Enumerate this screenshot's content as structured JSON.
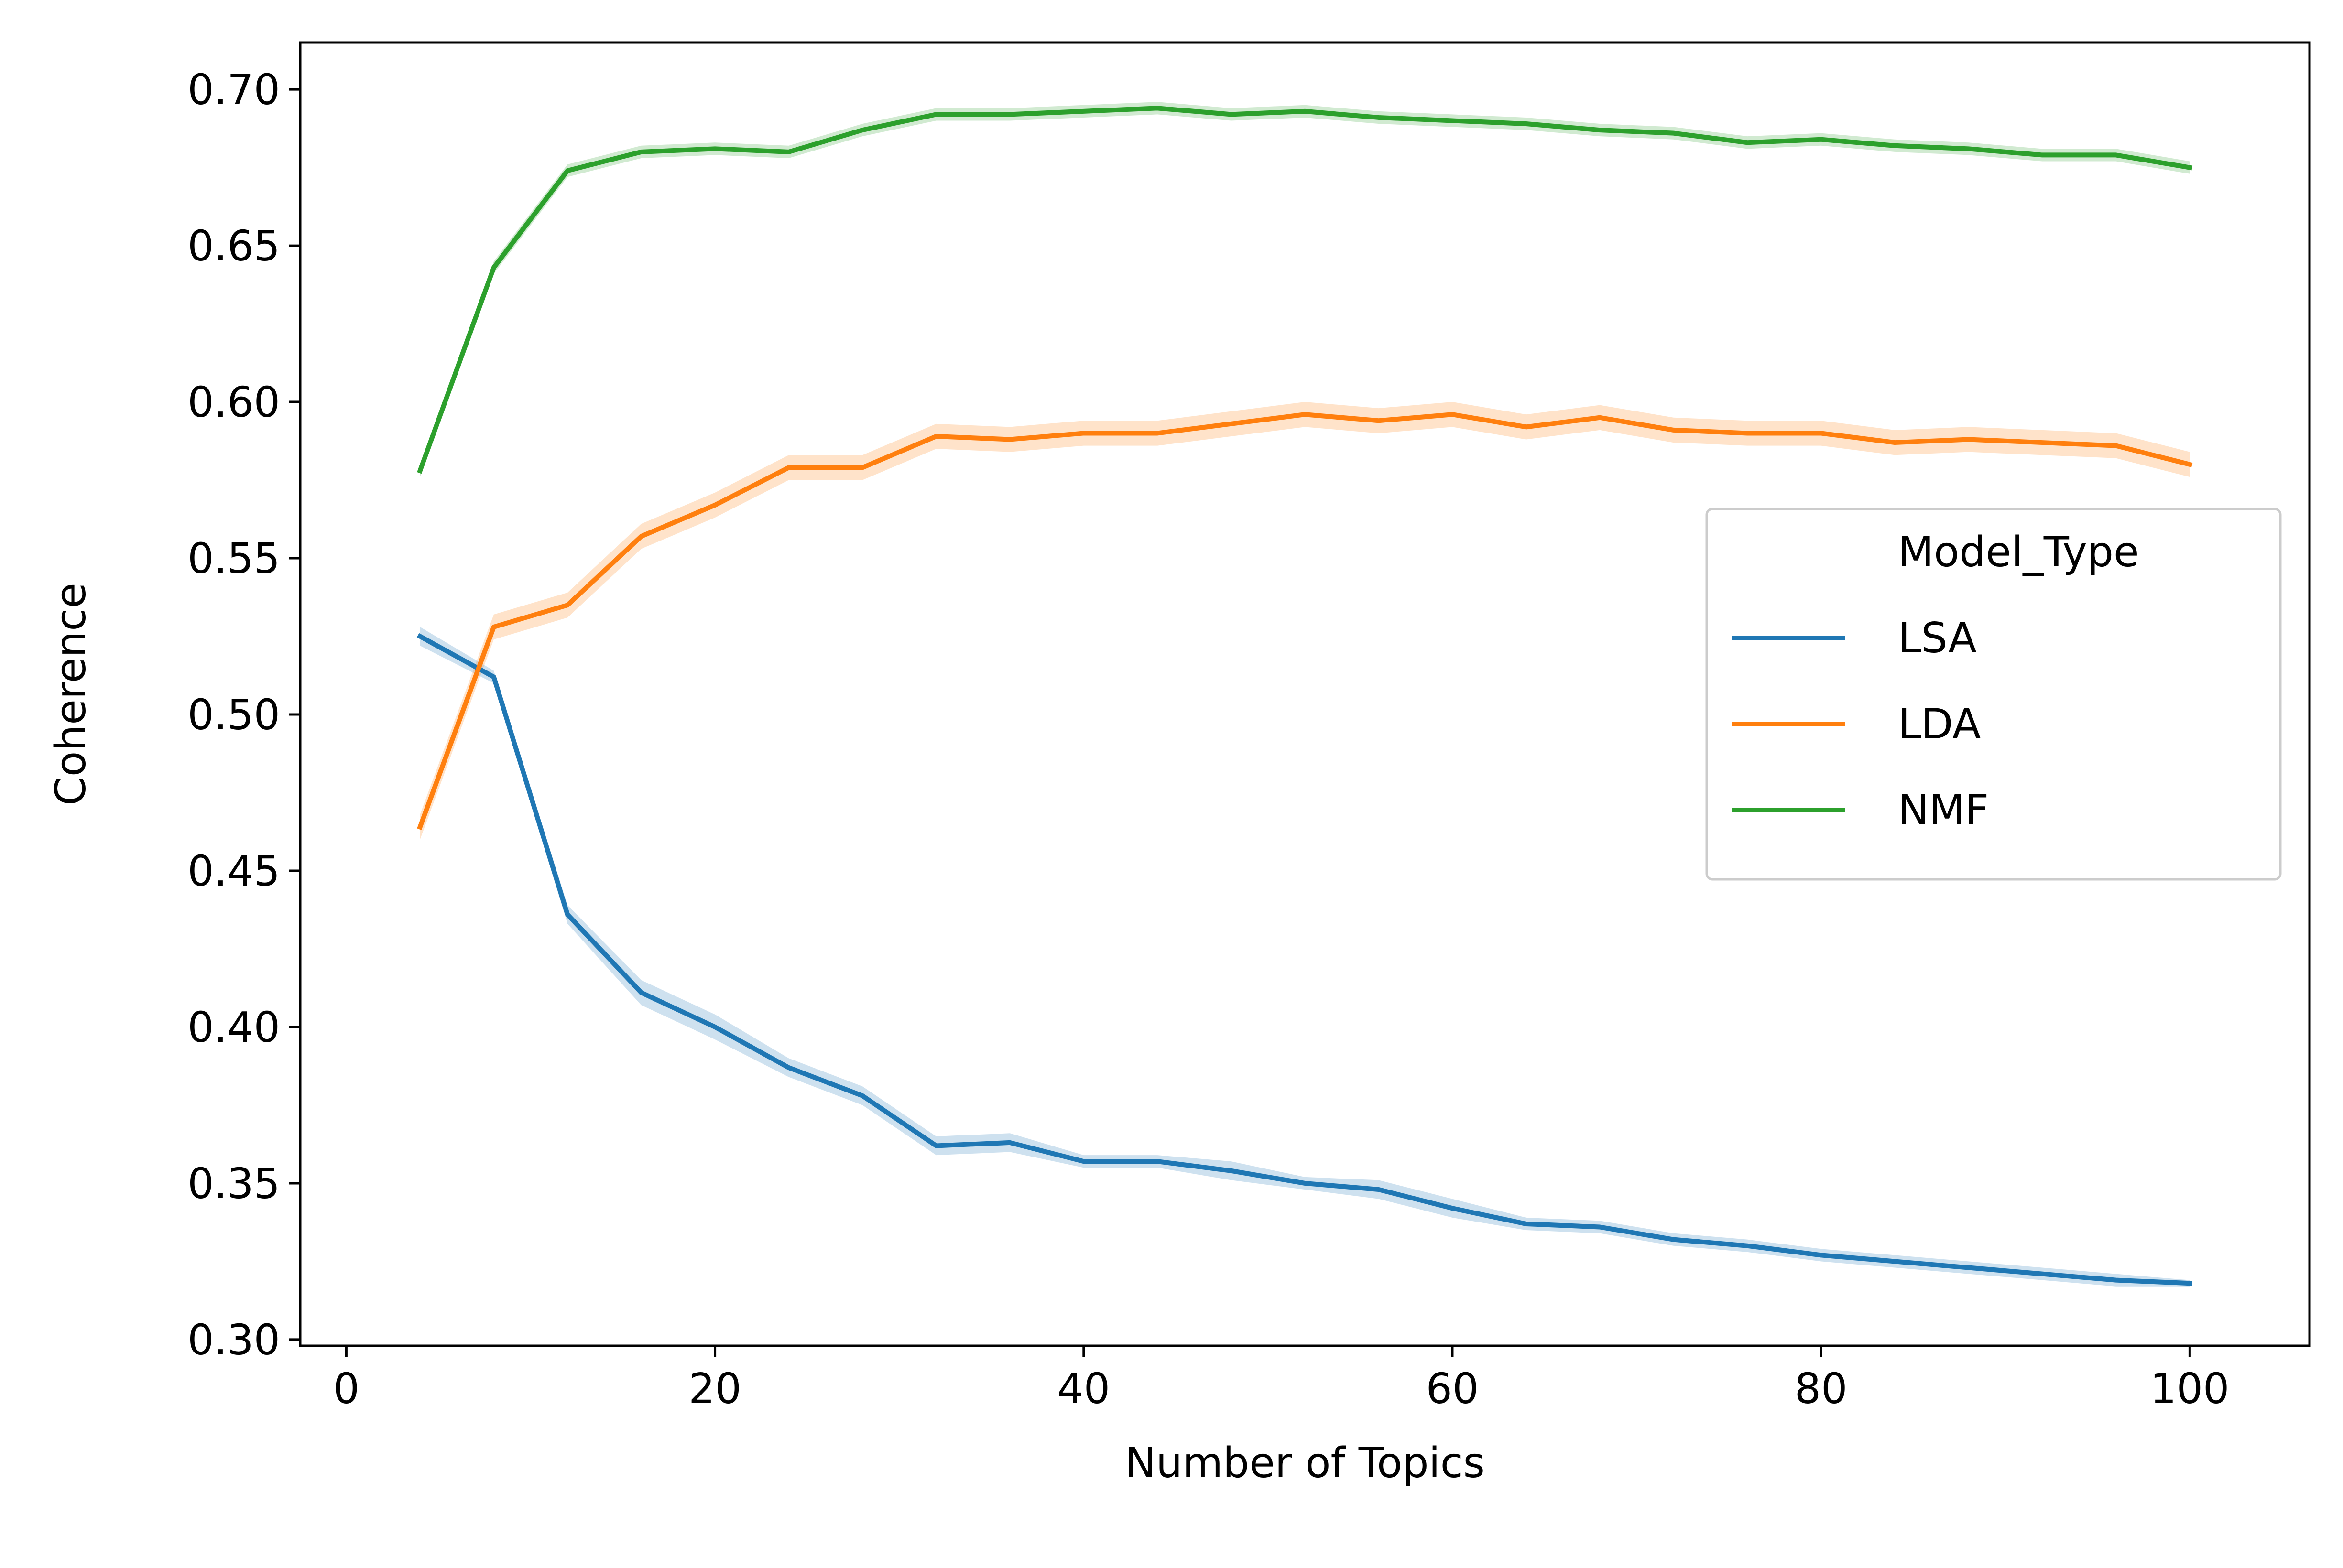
{
  "chart_data": {
    "type": "line",
    "title": "",
    "xlabel": "Number of Topics",
    "ylabel": "Coherence",
    "xlim": [
      -2.5,
      106.5
    ],
    "ylim": [
      0.298,
      0.715
    ],
    "xticks": [
      0,
      20,
      40,
      60,
      80,
      100
    ],
    "yticks": [
      0.3,
      0.35,
      0.4,
      0.45,
      0.5,
      0.55,
      0.6,
      0.65,
      0.7
    ],
    "x": [
      4,
      8,
      12,
      16,
      20,
      24,
      28,
      32,
      36,
      40,
      44,
      48,
      52,
      56,
      60,
      64,
      68,
      72,
      76,
      80,
      84,
      88,
      92,
      96,
      100
    ],
    "grid": false,
    "legend": {
      "title": "Model_Type",
      "placement": "center-right"
    },
    "series": [
      {
        "name": "LSA",
        "color": "#1f77b4",
        "values": [
          0.525,
          0.512,
          0.436,
          0.411,
          0.4,
          0.387,
          0.378,
          0.362,
          0.363,
          0.357,
          0.357,
          0.354,
          0.35,
          0.348,
          0.342,
          0.337,
          0.336,
          0.332,
          0.33,
          0.327,
          0.325,
          0.323,
          0.321,
          0.319,
          0.318
        ],
        "band": [
          0.003,
          0.002,
          0.003,
          0.004,
          0.004,
          0.003,
          0.003,
          0.003,
          0.003,
          0.002,
          0.002,
          0.003,
          0.002,
          0.003,
          0.003,
          0.002,
          0.002,
          0.002,
          0.002,
          0.002,
          0.002,
          0.002,
          0.002,
          0.002,
          0.001
        ]
      },
      {
        "name": "LDA",
        "color": "#ff7f0e",
        "values": [
          0.464,
          0.528,
          0.535,
          0.557,
          0.567,
          0.579,
          0.579,
          0.589,
          0.588,
          0.59,
          0.59,
          0.593,
          0.596,
          0.594,
          0.596,
          0.592,
          0.595,
          0.591,
          0.59,
          0.59,
          0.587,
          0.588,
          0.587,
          0.586,
          0.58
        ]
      },
      {
        "name": "NMF",
        "color": "#2ca02c",
        "values": [
          0.578,
          0.643,
          0.674,
          0.68,
          0.681,
          0.68,
          0.687,
          0.692,
          0.692,
          0.693,
          0.694,
          0.692,
          0.693,
          0.691,
          0.69,
          0.689,
          0.687,
          0.686,
          0.683,
          0.684,
          0.682,
          0.681,
          0.679,
          0.679,
          0.675
        ],
        "band": [
          0.002,
          0.002,
          0.002,
          0.002,
          0.002,
          0.002,
          0.002,
          0.002,
          0.002,
          0.002,
          0.002,
          0.002,
          0.002,
          0.002,
          0.002,
          0.002,
          0.002,
          0.002,
          0.002,
          0.002,
          0.002,
          0.002,
          0.002,
          0.002,
          0.002
        ]
      }
    ]
  }
}
